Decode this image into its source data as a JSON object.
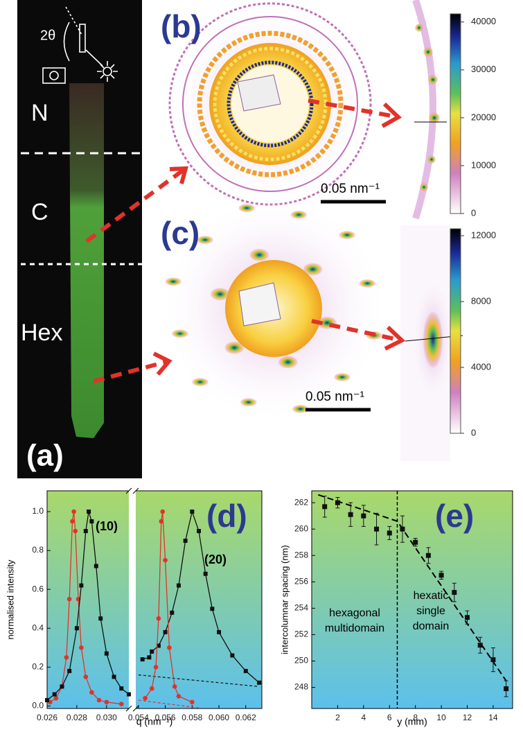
{
  "panels": {
    "a": {
      "label": "(a)",
      "phases": [
        "N",
        "C",
        "Hex"
      ],
      "angle": "2θ"
    },
    "b": {
      "label": "(b)",
      "scale": "0.05 nm⁻¹",
      "colorbar": {
        "lim": [
          0,
          41700
        ],
        "ticks": [
          0,
          10000,
          20000,
          30000,
          40000
        ]
      }
    },
    "c": {
      "label": "(c)",
      "scale": "0.05 nm⁻¹",
      "colorbar": {
        "lim": [
          0,
          12420
        ],
        "ticks": [
          0,
          4000,
          8000,
          12000
        ]
      }
    }
  },
  "chart_data": [
    {
      "type": "line",
      "label": "(d)",
      "xlabel": "q (nm⁻¹)",
      "ylabel": "normalised intensity",
      "annotations": [
        "(10)",
        "(20)"
      ],
      "xlim": [
        0.026,
        0.0632
      ],
      "xbreak": [
        0.0315,
        0.0538
      ],
      "ylim": [
        -0.013,
        1.107
      ],
      "xticks": [
        0.026,
        0.028,
        {
          "value": 0.03,
          "label": "0.030"
        },
        0.054,
        0.056,
        0.058,
        {
          "value": 0.06,
          "label": "0.060"
        },
        0.062
      ],
      "yticks": [
        {
          "value": 0,
          "label": "0.0"
        },
        0.2,
        0.4,
        0.6,
        0.8,
        {
          "value": 1,
          "label": "1.0"
        }
      ],
      "series": [
        {
          "color": "#e0332b",
          "x": [
            0.0262,
            0.0266,
            0.027,
            0.0273,
            0.0275,
            0.0277,
            0.0278,
            0.0279,
            0.0281,
            0.0283,
            0.0286,
            0.029,
            0.0295,
            0.03,
            0.031
          ],
          "values": [
            0.02,
            0.04,
            0.1,
            0.25,
            0.55,
            0.95,
            1.0,
            0.9,
            0.55,
            0.3,
            0.15,
            0.07,
            0.03,
            0.02,
            0.01
          ]
        },
        {
          "color": "#111111",
          "x": [
            0.026,
            0.0265,
            0.027,
            0.0275,
            0.028,
            0.0283,
            0.0286,
            0.0288,
            0.029,
            0.0293,
            0.0296,
            0.03,
            0.0305,
            0.031,
            0.0315
          ],
          "values": [
            0.03,
            0.06,
            0.1,
            0.18,
            0.4,
            0.62,
            0.9,
            1.0,
            0.95,
            0.72,
            0.45,
            0.27,
            0.15,
            0.09,
            0.06
          ]
        },
        {
          "color": "#111111",
          "x": [
            0.0543,
            0.0548,
            0.055,
            0.0555,
            0.056,
            0.0565,
            0.057,
            0.0575,
            0.058,
            0.0585,
            0.059,
            0.0595,
            0.06,
            0.061,
            0.062,
            0.063
          ],
          "values": [
            0.24,
            0.25,
            0.28,
            0.31,
            0.38,
            0.48,
            0.62,
            0.85,
            1.0,
            0.9,
            0.68,
            0.5,
            0.38,
            0.26,
            0.18,
            0.12
          ]
        },
        {
          "color": "#e0332b",
          "x": [
            0.0545,
            0.055,
            0.0553,
            0.0555,
            0.0557,
            0.0558,
            0.056,
            0.0563,
            0.0567,
            0.057,
            0.058
          ],
          "values": [
            0.04,
            0.09,
            0.2,
            0.45,
            0.95,
            1.0,
            0.75,
            0.3,
            0.1,
            0.05,
            0.02
          ]
        }
      ],
      "baselines": [
        {
          "color": "#111111",
          "x": [
            0.054,
            0.063
          ],
          "values": [
            0.16,
            0.1
          ]
        },
        {
          "color": "#e0332b",
          "x": [
            0.054,
            0.0585
          ],
          "values": [
            0.03,
            -0.01
          ]
        }
      ]
    },
    {
      "type": "scatter",
      "label": "(e)",
      "xlabel": "y (mm)",
      "ylabel": "intercolumnar spacing (nm)",
      "annotations": [
        [
          "hexagonal",
          "multidomain"
        ],
        [
          "hexatic",
          "single",
          "domain"
        ]
      ],
      "xlim": [
        0,
        15.5
      ],
      "ylim": [
        246.4,
        262.9
      ],
      "xticks": [
        2,
        4,
        6,
        8,
        10,
        12,
        14
      ],
      "yticks": [
        248,
        250,
        252,
        254,
        256,
        258,
        260,
        262
      ],
      "series": [
        {
          "color": "#111111",
          "x": [
            1,
            2,
            3,
            4,
            5,
            6,
            7,
            8,
            9,
            10,
            11,
            12,
            13,
            14,
            15
          ],
          "values": [
            261.7,
            262.0,
            261.1,
            261.0,
            260.0,
            259.7,
            260.0,
            259.0,
            258.0,
            256.5,
            255.2,
            253.3,
            251.2,
            250.1,
            247.9
          ],
          "errors": [
            0.8,
            0.4,
            0.9,
            0.8,
            1.2,
            0.5,
            1.0,
            0.3,
            0.6,
            0.3,
            0.7,
            0.5,
            0.6,
            0.9,
            0.6
          ]
        }
      ],
      "fit": {
        "x": [
          0.5,
          6.6,
          15
        ],
        "values": [
          262.6,
          260.6,
          248.5
        ]
      },
      "divider": 6.6
    }
  ]
}
